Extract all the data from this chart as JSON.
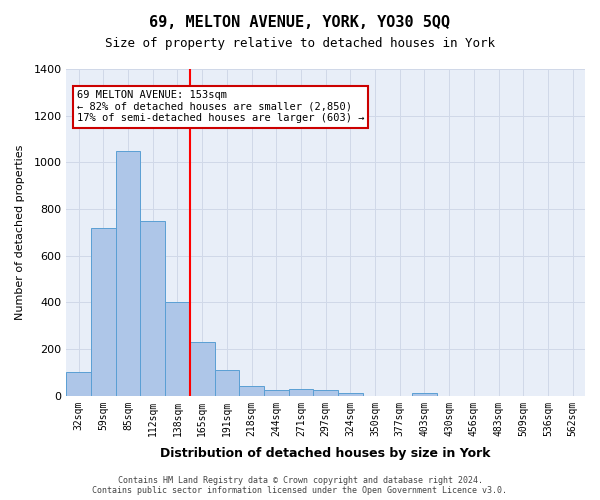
{
  "title": "69, MELTON AVENUE, YORK, YO30 5QQ",
  "subtitle": "Size of property relative to detached houses in York",
  "xlabel": "Distribution of detached houses by size in York",
  "ylabel": "Number of detached properties",
  "bins": [
    "32sqm",
    "59sqm",
    "85sqm",
    "112sqm",
    "138sqm",
    "165sqm",
    "191sqm",
    "218sqm",
    "244sqm",
    "271sqm",
    "297sqm",
    "324sqm",
    "350sqm",
    "377sqm",
    "403sqm",
    "430sqm",
    "456sqm",
    "483sqm",
    "509sqm",
    "536sqm",
    "562sqm"
  ],
  "values": [
    100,
    720,
    1050,
    750,
    400,
    230,
    110,
    40,
    25,
    30,
    25,
    10,
    0,
    0,
    10,
    0,
    0,
    0,
    0,
    0,
    0
  ],
  "bar_color": "#aec6e8",
  "bar_edge_color": "#5a9fd4",
  "grid_color": "#d0d8e8",
  "background_color": "#e8eef8",
  "red_line_x": 4.5,
  "annotation_line1": "69 MELTON AVENUE: 153sqm",
  "annotation_line2": "← 82% of detached houses are smaller (2,850)",
  "annotation_line3": "17% of semi-detached houses are larger (603) →",
  "annotation_box_color": "#ffffff",
  "annotation_box_edge": "#cc0000",
  "footer_line1": "Contains HM Land Registry data © Crown copyright and database right 2024.",
  "footer_line2": "Contains public sector information licensed under the Open Government Licence v3.0.",
  "ylim": [
    0,
    1400
  ],
  "yticks": [
    0,
    200,
    400,
    600,
    800,
    1000,
    1200,
    1400
  ]
}
